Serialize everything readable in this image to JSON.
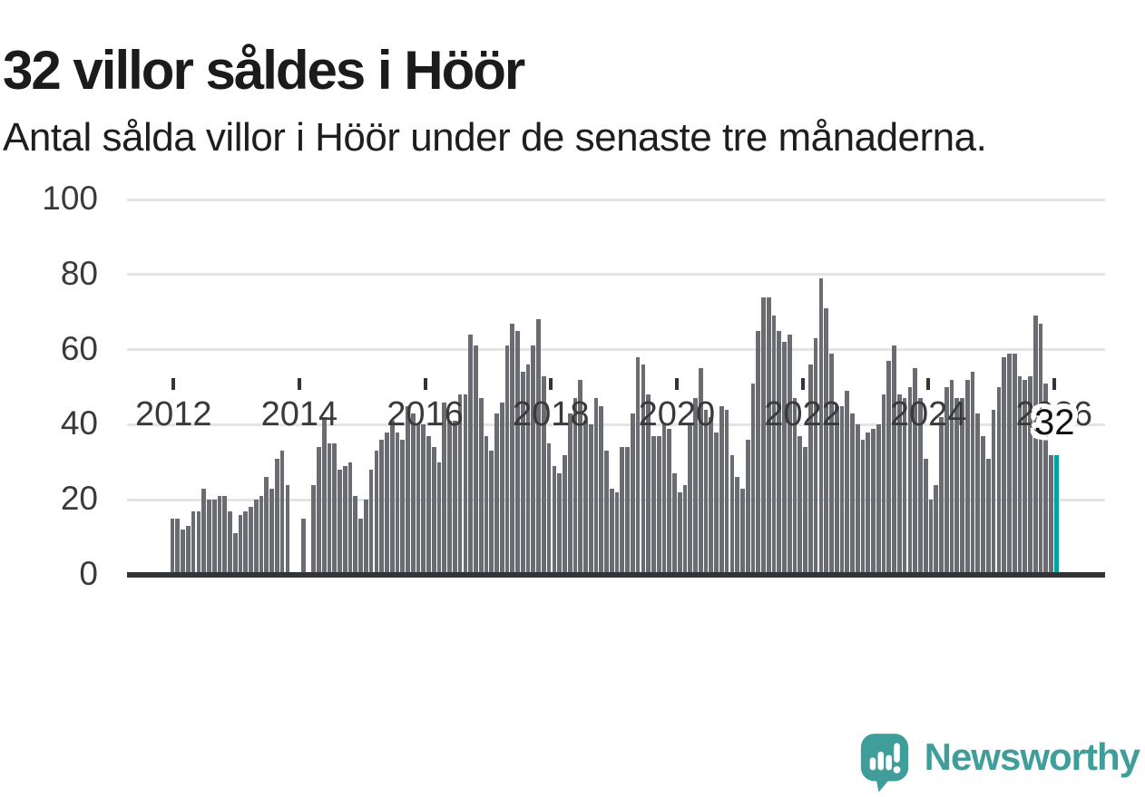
{
  "header": {
    "title": "32 villor såldes i Höör",
    "subtitle": "Antal sålda villor i Höör under de senaste tre månaderna."
  },
  "chart_data": {
    "type": "bar",
    "title": "32 villor såldes i Höör",
    "subtitle": "Antal sålda villor i Höör under de senaste tre månaderna.",
    "unit": "sålda villor per månad (rullande tre månader)",
    "x_start": "2012-01",
    "x_end": "2026-02",
    "ylim": [
      0,
      100
    ],
    "yticks": [
      0,
      20,
      40,
      60,
      80,
      100
    ],
    "x_tick_years": [
      2012,
      2014,
      2016,
      2018,
      2020,
      2022,
      2024,
      2026
    ],
    "grid": true,
    "bar_color": "#6b6b72",
    "highlight_color": "#00a2a1",
    "grid_color": "#e4e4e4",
    "axis_color": "#33333a",
    "annotation": {
      "label": "32",
      "applies_to": "last-bar"
    },
    "series_by_year": [
      {
        "year": 2012,
        "monthly_values": [
          15,
          15,
          12,
          13,
          17,
          17,
          23,
          20,
          20,
          21,
          21,
          17
        ]
      },
      {
        "year": 2013,
        "monthly_values": [
          11,
          16,
          17,
          18,
          20,
          21,
          26,
          23,
          31,
          33,
          24,
          0
        ]
      },
      {
        "year": 2014,
        "monthly_values": [
          0,
          15,
          0,
          24,
          34,
          42,
          35,
          35,
          28,
          29,
          30,
          21
        ]
      },
      {
        "year": 2015,
        "monthly_values": [
          15,
          20,
          28,
          33,
          36,
          38,
          41,
          38,
          36,
          45,
          43,
          40
        ]
      },
      {
        "year": 2016,
        "monthly_values": [
          40,
          37,
          34,
          30,
          46,
          41,
          41,
          48,
          48,
          64,
          61,
          47
        ]
      },
      {
        "year": 2017,
        "monthly_values": [
          37,
          33,
          43,
          46,
          61,
          67,
          65,
          54,
          56,
          61,
          68,
          53
        ]
      },
      {
        "year": 2018,
        "monthly_values": [
          35,
          29,
          27,
          32,
          43,
          47,
          52,
          41,
          40,
          47,
          45,
          33
        ]
      },
      {
        "year": 2019,
        "monthly_values": [
          23,
          22,
          34,
          34,
          43,
          58,
          56,
          48,
          37,
          37,
          40,
          39
        ]
      },
      {
        "year": 2020,
        "monthly_values": [
          27,
          22,
          24,
          40,
          47,
          55,
          44,
          42,
          38,
          45,
          44,
          32
        ]
      },
      {
        "year": 2021,
        "monthly_values": [
          26,
          23,
          36,
          51,
          65,
          74,
          74,
          69,
          65,
          62,
          64,
          47
        ]
      },
      {
        "year": 2022,
        "monthly_values": [
          37,
          34,
          56,
          63,
          79,
          71,
          59,
          45,
          45,
          49,
          43,
          40
        ]
      },
      {
        "year": 2023,
        "monthly_values": [
          36,
          38,
          39,
          40,
          48,
          57,
          61,
          48,
          47,
          50,
          55,
          47
        ]
      },
      {
        "year": 2024,
        "monthly_values": [
          31,
          20,
          24,
          42,
          50,
          52,
          47,
          47,
          52,
          54,
          43,
          37
        ]
      },
      {
        "year": 2025,
        "monthly_values": [
          31,
          44,
          50,
          58,
          59,
          59,
          53,
          52,
          53,
          69,
          67,
          51
        ]
      },
      {
        "year": 2026,
        "monthly_values": [
          32,
          32
        ]
      }
    ],
    "last_value": 32
  },
  "footer": {
    "brand": "Newsworthy",
    "brand_color": "#3f9d9a",
    "logo_icon": "bar-chart-speech-bubble-icon"
  }
}
